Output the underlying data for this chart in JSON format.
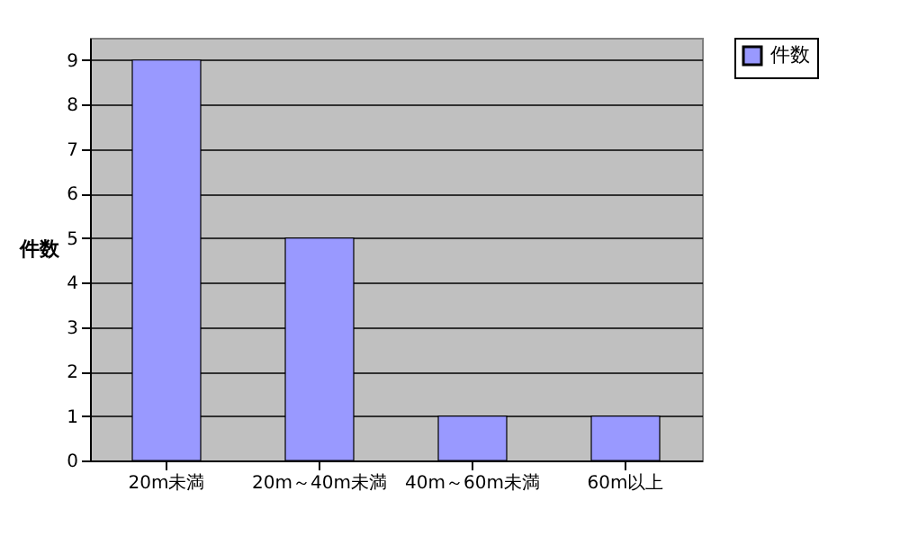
{
  "chart_data": {
    "type": "bar",
    "ylabel": "件数",
    "categories": [
      "20m未満",
      "20m～40m未満",
      "40m～60m未満",
      "60m以上"
    ],
    "series": [
      {
        "name": "件数",
        "color": "#9999ff",
        "values": [
          9,
          5,
          1,
          1
        ]
      }
    ],
    "ylim": [
      0,
      9.5
    ],
    "yticks": [
      0,
      1,
      2,
      3,
      4,
      5,
      6,
      7,
      8,
      9
    ],
    "grid": "y",
    "legend": "right"
  }
}
